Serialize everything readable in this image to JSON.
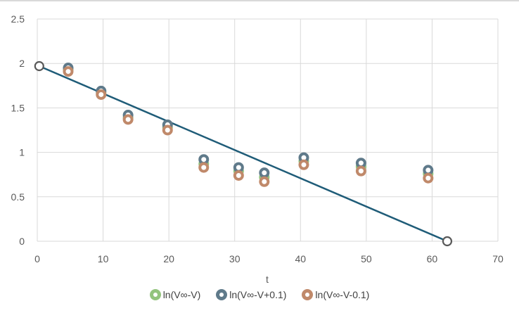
{
  "chart_data": {
    "type": "scatter",
    "xlabel": "t",
    "ylabel": "",
    "xlim": [
      0,
      70
    ],
    "ylim": [
      0,
      2.5
    ],
    "xticks": [
      "0",
      "10",
      "20",
      "30",
      "40",
      "50",
      "60",
      "70"
    ],
    "yticks": [
      "0",
      "0.5",
      "1",
      "1.5",
      "2",
      "2.5"
    ],
    "grid": true,
    "legend_position": "bottom",
    "series": [
      {
        "name": "ln(V∞-V)",
        "color": "#93c47d",
        "x": [
          4.7,
          9.7,
          13.8,
          19.8,
          25.3,
          30.6,
          34.5,
          40.5,
          49.2,
          59.4
        ],
        "y": [
          1.93,
          1.67,
          1.39,
          1.28,
          0.87,
          0.79,
          0.72,
          0.9,
          0.84,
          0.76
        ]
      },
      {
        "name": "ln(V∞-V+0.1)",
        "color": "#5f7a8a",
        "x": [
          4.7,
          9.7,
          13.8,
          19.8,
          25.3,
          30.6,
          34.5,
          40.5,
          49.2,
          59.4
        ],
        "y": [
          1.95,
          1.69,
          1.42,
          1.31,
          0.92,
          0.83,
          0.77,
          0.94,
          0.88,
          0.8
        ]
      },
      {
        "name": "ln(V∞-V-0.1)",
        "color": "#c0896a",
        "x": [
          4.7,
          9.7,
          13.8,
          19.8,
          25.3,
          30.6,
          34.5,
          40.5,
          49.2,
          59.4
        ],
        "y": [
          1.91,
          1.65,
          1.37,
          1.25,
          0.83,
          0.74,
          0.67,
          0.86,
          0.79,
          0.71
        ]
      }
    ],
    "fit_line": {
      "color": "#1f5c78",
      "x": [
        0.3,
        62.3
      ],
      "y": [
        1.97,
        0
      ]
    }
  }
}
